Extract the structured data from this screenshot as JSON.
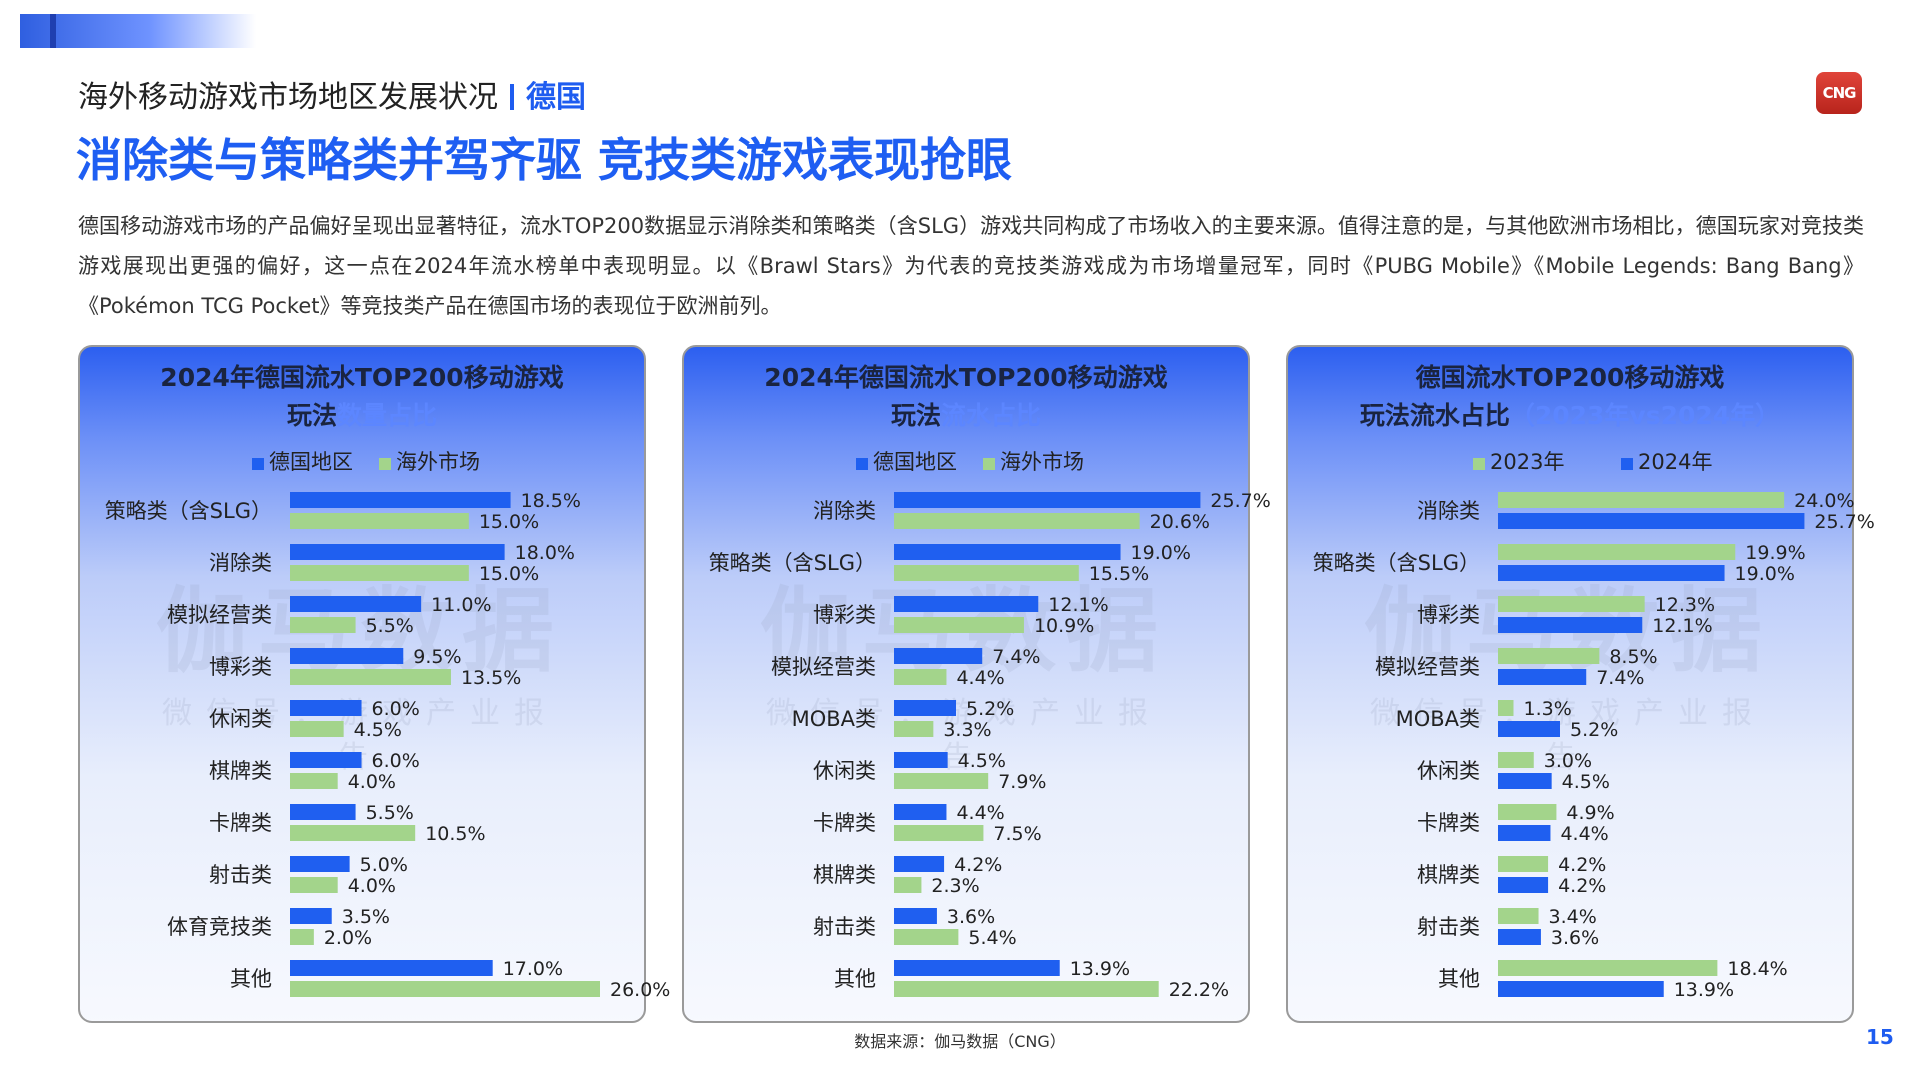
{
  "header": {
    "section_title": "海外移动游戏市场地区发展状况",
    "section_region": "德国",
    "logo_text": "CNG",
    "main_title": "消除类与策略类并驾齐驱 竞技类游戏表现抢眼",
    "intro": "德国移动游戏市场的产品偏好呈现出显著特征，流水TOP200数据显示消除类和策略类（含SLG）游戏共同构成了市场收入的主要来源。值得注意的是，与其他欧洲市场相比，德国玩家对竞技类游戏展现出更强的偏好，这一点在2024年流水榜单中表现明显。以《Brawl Stars》为代表的竞技类游戏成为市场增量冠军，同时《PUBG Mobile》《Mobile Legends: Bang Bang》《Pokémon TCG Pocket》等竞技类产品在德国市场的表现位于欧洲前列。"
  },
  "watermark": {
    "big": "伽马数据",
    "small": "微信号：游戏产业报告"
  },
  "colors": {
    "blue": "#1f5ff0",
    "green": "#a3d48b",
    "accent": "#1e5cf0"
  },
  "chart_data": [
    {
      "type": "bar",
      "orientation": "horizontal",
      "title_main": "2024年德国流水TOP200移动游戏",
      "title_line2": "玩法",
      "title_sub": "数量占比",
      "legend_position": "top",
      "categories": [
        "策略类（含SLG）",
        "消除类",
        "模拟经营类",
        "博彩类",
        "休闲类",
        "棋牌类",
        "卡牌类",
        "射击类",
        "体育竞技类",
        "其他"
      ],
      "series": [
        {
          "name": "德国地区",
          "color": "#1f5ff0",
          "values": [
            18.5,
            18.0,
            11.0,
            9.5,
            6.0,
            6.0,
            5.5,
            5.0,
            3.5,
            17.0
          ],
          "labels": [
            "18.5%",
            "18.0%",
            "11.0%",
            "9.5%",
            "6.0%",
            "6.0%",
            "5.5%",
            "5.0%",
            "3.5%",
            "17.0%"
          ]
        },
        {
          "name": "海外市场",
          "color": "#a3d48b",
          "values": [
            15.0,
            15.0,
            5.5,
            13.5,
            4.5,
            4.0,
            10.5,
            4.0,
            2.0,
            26.0
          ],
          "labels": [
            "15.0%",
            "15.0%",
            "5.5%",
            "13.5%",
            "4.5%",
            "4.0%",
            "10.5%",
            "4.0%",
            "2.0%",
            "26.0%"
          ]
        }
      ],
      "xlim": [
        0,
        26
      ]
    },
    {
      "type": "bar",
      "orientation": "horizontal",
      "title_main": "2024年德国流水TOP200移动游戏",
      "title_line2": "玩法",
      "title_sub": "流水占比",
      "legend_position": "top",
      "categories": [
        "消除类",
        "策略类（含SLG）",
        "博彩类",
        "模拟经营类",
        "MOBA类",
        "休闲类",
        "卡牌类",
        "棋牌类",
        "射击类",
        "其他"
      ],
      "series": [
        {
          "name": "德国地区",
          "color": "#1f5ff0",
          "values": [
            25.7,
            19.0,
            12.1,
            7.4,
            5.2,
            4.5,
            4.4,
            4.2,
            3.6,
            13.9
          ],
          "labels": [
            "25.7%",
            "19.0%",
            "12.1%",
            "7.4%",
            "5.2%",
            "4.5%",
            "4.4%",
            "4.2%",
            "3.6%",
            "13.9%"
          ]
        },
        {
          "name": "海外市场",
          "color": "#a3d48b",
          "values": [
            20.6,
            15.5,
            10.9,
            4.4,
            3.3,
            7.9,
            7.5,
            2.3,
            5.4,
            22.2
          ],
          "labels": [
            "20.6%",
            "15.5%",
            "10.9%",
            "4.4%",
            "3.3%",
            "7.9%",
            "7.5%",
            "2.3%",
            "5.4%",
            "22.2%"
          ]
        }
      ],
      "xlim": [
        0,
        26
      ]
    },
    {
      "type": "bar",
      "orientation": "horizontal",
      "title_main": "德国流水TOP200移动游戏",
      "title_line2": "玩法流水占比",
      "title_sub": "（2023年vs2024年）",
      "legend_position": "top",
      "categories": [
        "消除类",
        "策略类（含SLG）",
        "博彩类",
        "模拟经营类",
        "MOBA类",
        "休闲类",
        "卡牌类",
        "棋牌类",
        "射击类",
        "其他"
      ],
      "series": [
        {
          "name": "2023年",
          "color": "#a3d48b",
          "values": [
            24.0,
            19.9,
            12.3,
            8.5,
            1.3,
            3.0,
            4.9,
            4.2,
            3.4,
            18.4
          ],
          "labels": [
            "24.0%",
            "19.9%",
            "12.3%",
            "8.5%",
            "1.3%",
            "3.0%",
            "4.9%",
            "4.2%",
            "3.4%",
            "18.4%"
          ]
        },
        {
          "name": "2024年",
          "color": "#1f5ff0",
          "values": [
            25.7,
            19.0,
            12.1,
            7.4,
            5.2,
            4.5,
            4.4,
            4.2,
            3.6,
            13.9
          ],
          "labels": [
            "25.7%",
            "19.0%",
            "12.1%",
            "7.4%",
            "5.2%",
            "4.5%",
            "4.4%",
            "4.2%",
            "3.6%",
            "13.9%"
          ]
        }
      ],
      "xlim": [
        0,
        26
      ]
    }
  ],
  "footer": {
    "source": "数据来源：伽马数据（CNG）",
    "page_number": "15"
  }
}
